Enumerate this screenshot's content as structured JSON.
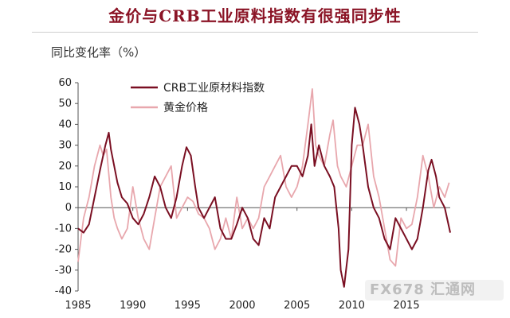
{
  "header": {
    "title": "金价与CRB工业原料指数有很强同步性"
  },
  "watermark": "FX678 汇通网",
  "chart_data": {
    "type": "line",
    "ylabel": "同比变化率（%）",
    "ylim": [
      -40,
      60
    ],
    "yticks": [
      -40,
      -30,
      -20,
      -10,
      0,
      10,
      20,
      30,
      40,
      50,
      60
    ],
    "xlim": [
      1985,
      2019
    ],
    "xticks": [
      1985,
      1990,
      1995,
      2000,
      2005,
      2010,
      2015
    ],
    "grid": false,
    "legend": "top-left",
    "colors": {
      "crb": "#7a0f22",
      "gold": "#e8a7ad"
    },
    "series": [
      {
        "name": "CRB工业原材料指数",
        "x": [
          1985.0,
          1985.5,
          1986.0,
          1986.5,
          1987.0,
          1987.5,
          1987.8,
          1988.0,
          1988.3,
          1988.6,
          1989.0,
          1989.5,
          1990.0,
          1990.5,
          1991.0,
          1991.5,
          1992.0,
          1992.5,
          1993.0,
          1993.5,
          1994.0,
          1994.5,
          1994.9,
          1995.3,
          1995.7,
          1996.0,
          1996.5,
          1997.0,
          1997.5,
          1998.0,
          1998.5,
          1999.0,
          1999.5,
          2000.0,
          2000.5,
          2001.0,
          2001.5,
          2002.0,
          2002.5,
          2003.0,
          2003.5,
          2004.0,
          2004.5,
          2005.0,
          2005.5,
          2006.0,
          2006.3,
          2006.6,
          2007.0,
          2007.5,
          2008.0,
          2008.4,
          2008.8,
          2009.0,
          2009.3,
          2009.7,
          2010.0,
          2010.3,
          2010.7,
          2011.0,
          2011.5,
          2012.0,
          2012.5,
          2013.0,
          2013.5,
          2014.0,
          2014.5,
          2015.0,
          2015.5,
          2016.0,
          2016.5,
          2017.0,
          2017.3,
          2017.7,
          2018.0,
          2018.5,
          2019.0
        ],
        "values": [
          -10,
          -12,
          -8,
          5,
          18,
          30,
          36,
          28,
          20,
          12,
          5,
          2,
          -5,
          -8,
          -3,
          5,
          15,
          10,
          0,
          -5,
          5,
          20,
          29,
          25,
          10,
          0,
          -5,
          0,
          5,
          -10,
          -15,
          -15,
          -8,
          0,
          -5,
          -15,
          -18,
          -5,
          -10,
          5,
          10,
          15,
          20,
          20,
          15,
          25,
          40,
          20,
          30,
          20,
          15,
          10,
          -10,
          -30,
          -38,
          -20,
          30,
          48,
          40,
          30,
          10,
          0,
          -5,
          -15,
          -20,
          -5,
          -10,
          -15,
          -20,
          -15,
          0,
          18,
          23,
          15,
          5,
          0,
          -12
        ]
      },
      {
        "name": "黄金价格",
        "x": [
          1985.0,
          1985.5,
          1986.0,
          1986.5,
          1987.0,
          1987.3,
          1987.6,
          1988.0,
          1988.3,
          1988.6,
          1989.0,
          1989.5,
          1990.0,
          1990.5,
          1991.0,
          1991.5,
          1992.0,
          1992.5,
          1993.0,
          1993.5,
          1994.0,
          1994.5,
          1995.0,
          1995.5,
          1996.0,
          1996.5,
          1997.0,
          1997.5,
          1998.0,
          1998.5,
          1999.0,
          1999.5,
          2000.0,
          2000.5,
          2001.0,
          2001.5,
          2002.0,
          2002.5,
          2003.0,
          2003.5,
          2004.0,
          2004.5,
          2005.0,
          2005.5,
          2006.0,
          2006.4,
          2006.7,
          2007.0,
          2007.5,
          2008.0,
          2008.3,
          2008.7,
          2009.0,
          2009.5,
          2010.0,
          2010.5,
          2011.0,
          2011.5,
          2012.0,
          2012.5,
          2013.0,
          2013.5,
          2014.0,
          2014.5,
          2015.0,
          2015.5,
          2016.0,
          2016.5,
          2017.0,
          2017.5,
          2018.0,
          2018.5,
          2018.9
        ],
        "values": [
          -26,
          -5,
          5,
          20,
          30,
          25,
          28,
          5,
          -5,
          -10,
          -15,
          -10,
          10,
          -5,
          -15,
          -20,
          -5,
          10,
          15,
          20,
          -5,
          0,
          5,
          3,
          -3,
          -5,
          -10,
          -20,
          -15,
          -5,
          -15,
          5,
          -10,
          -5,
          -10,
          -5,
          10,
          15,
          20,
          25,
          10,
          5,
          10,
          20,
          40,
          57,
          30,
          25,
          20,
          35,
          42,
          20,
          15,
          10,
          20,
          30,
          30,
          40,
          15,
          5,
          -10,
          -25,
          -28,
          -5,
          -10,
          -8,
          5,
          25,
          15,
          0,
          10,
          5,
          12
        ]
      }
    ]
  }
}
